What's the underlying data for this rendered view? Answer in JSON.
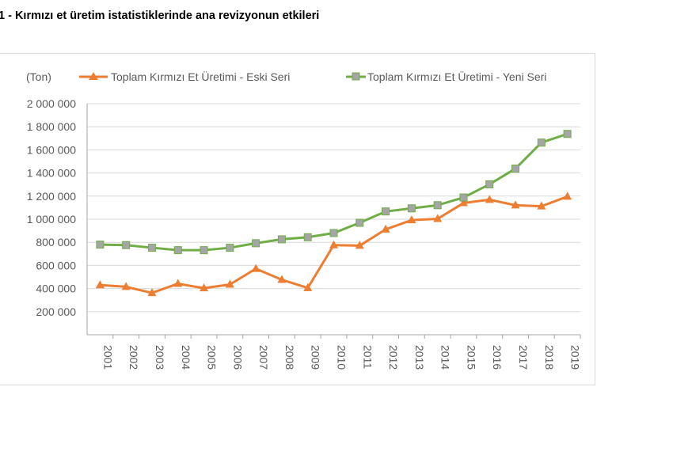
{
  "title": "1 - Kırmızı et üretim istatistiklerinde ana revizyonun etkileri",
  "chart_data": {
    "type": "line",
    "title": "",
    "unit_label": "(Ton)",
    "xlabel": "",
    "ylabel": "",
    "ylim": [
      0,
      2000000
    ],
    "yticks": [
      200000,
      400000,
      600000,
      800000,
      1000000,
      1200000,
      1400000,
      1600000,
      1800000,
      2000000
    ],
    "ytick_labels": [
      "200 000",
      "400 000",
      "600 000",
      "800 000",
      "1 000 000",
      "1 200 000",
      "1 400 000",
      "1 600 000",
      "1 800 000",
      "2 000 000"
    ],
    "categories": [
      "2001",
      "2002",
      "2003",
      "2004",
      "2005",
      "2006",
      "2007",
      "2008",
      "2009",
      "2010",
      "2011",
      "2012",
      "2013",
      "2014",
      "2015",
      "2016",
      "2017",
      "2018",
      "2019"
    ],
    "grid": true,
    "legend_placement": "top",
    "series": [
      {
        "name": "Toplam Kırmızı Et Üretimi - Eski Seri",
        "color": "#ED7D31",
        "marker": "triangle",
        "values": [
          430000,
          415000,
          362000,
          442000,
          403000,
          435000,
          571000,
          476000,
          405000,
          776000,
          771000,
          912000,
          992000,
          1003000,
          1140000,
          1169000,
          1121000,
          1112000,
          1196000
        ]
      },
      {
        "name": "Toplam Kırmızı Et Üretimi - Yeni Seri",
        "color": "#70AD47",
        "marker_fill": "#A5A5A5",
        "marker": "square",
        "values": [
          780000,
          776000,
          753000,
          732000,
          732000,
          753000,
          792000,
          826000,
          844000,
          880000,
          969000,
          1067000,
          1094000,
          1121000,
          1188000,
          1302000,
          1438000,
          1663000,
          1738000
        ]
      }
    ]
  }
}
